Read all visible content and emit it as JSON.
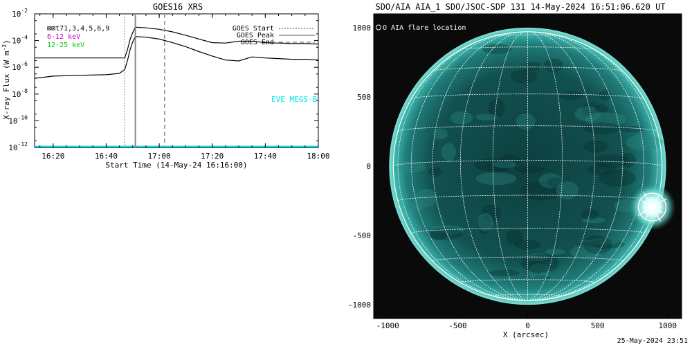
{
  "chart_data": [
    {
      "type": "line",
      "title": "GOES16 XRS",
      "xlabel": "Start Time (14-May-24 16:16:00)",
      "ylabel": "X-ray Flux (W m",
      "ylabel_sup": "-2",
      "ylabel_end": ")",
      "y_scale": "log",
      "ylim": [
        1e-12,
        0.01
      ],
      "xlim": [
        "16:13",
        "18:00"
      ],
      "x_ticks": [
        "16:20",
        "16:40",
        "17:00",
        "17:20",
        "17:40",
        "18:00"
      ],
      "y_ticks": [
        {
          "base": "10",
          "exp": "-2"
        },
        {
          "base": "10",
          "exp": "-4"
        },
        {
          "base": "10",
          "exp": "-6"
        },
        {
          "base": "10",
          "exp": "-8"
        },
        {
          "base": "10",
          "exp": "-10"
        },
        {
          "base": "10",
          "exp": "-12"
        }
      ],
      "legend_top_left": [
        {
          "text": "⊠⊠t71,3,4,5,6,9",
          "color": "#000000"
        },
        {
          "text": "6-12 keV",
          "color": "#cc00cc"
        },
        {
          "text": "12-25 keV",
          "color": "#00cc00"
        }
      ],
      "legend_top_right": [
        {
          "text": "GOES Start",
          "style": "dotted"
        },
        {
          "text": "GOES Peak",
          "style": "solid"
        },
        {
          "text": "GOES End",
          "style": "dashed"
        }
      ],
      "annotation": {
        "text": "EVE MEGS-B",
        "color": "#00e5ee"
      },
      "vlines": {
        "start": "16:47",
        "peak": "16:51",
        "end": "17:02"
      },
      "series": [
        {
          "color": "#000000",
          "x": [
            "16:13",
            "16:40",
            "16:47",
            "16:48",
            "16:49",
            "16:50",
            "16:51",
            "16:55",
            "17:00",
            "17:05",
            "17:10",
            "17:15",
            "17:20",
            "17:25",
            "17:30",
            "17:35",
            "17:40",
            "17:45",
            "17:50",
            "17:55",
            "18:00"
          ],
          "y": [
            5e-06,
            5e-06,
            5e-06,
            2e-05,
            0.00012,
            0.0004,
            0.001,
            0.0009,
            0.0007,
            0.00045,
            0.00025,
            0.00013,
            7e-05,
            6.5e-05,
            9e-05,
            9e-05,
            7e-05,
            6.5e-05,
            6e-05,
            6e-05,
            5.5e-05
          ]
        },
        {
          "color": "#000000",
          "x": [
            "16:13",
            "16:20",
            "16:30",
            "16:40",
            "16:45",
            "16:47",
            "16:48",
            "16:49",
            "16:50",
            "16:51",
            "16:55",
            "17:00",
            "17:05",
            "17:10",
            "17:15",
            "17:20",
            "17:25",
            "17:30",
            "17:35",
            "17:40",
            "17:45",
            "17:50",
            "17:55",
            "18:00"
          ],
          "y": [
            1.5e-07,
            2.2e-07,
            2.5e-07,
            2.8e-07,
            3.5e-07,
            7e-07,
            3e-06,
            2e-05,
            8e-05,
            0.0002,
            0.00018,
            0.00013,
            7e-05,
            3.5e-05,
            1.5e-05,
            7e-06,
            3.5e-06,
            3e-06,
            6e-06,
            5e-06,
            4.5e-06,
            4e-06,
            4e-06,
            3.5e-06
          ]
        },
        {
          "color": "#00e5ee",
          "x": [
            "16:13",
            "18:00"
          ],
          "y": [
            1.2e-12,
            1.2e-12
          ]
        }
      ]
    },
    {
      "type": "scatter",
      "title": "SDO/AIA AIA_1 SDO/JSOC-SDP 131 14-May-2024 16:51:06.620 UT",
      "xlabel": "X (arcsec)",
      "ylabel": "",
      "xlim": [
        -1100,
        1100
      ],
      "ylim": [
        -1100,
        1100
      ],
      "x_ticks": [
        "-1000",
        "-500",
        "0",
        "500",
        "1000"
      ],
      "y_ticks": [
        "1000",
        "500",
        "0",
        "-500",
        "-1000"
      ],
      "legend": "O AIA flare location",
      "disk_radius": 960,
      "flare_location": {
        "x": 890,
        "y": -295
      }
    }
  ],
  "footer": {
    "timestamp": "25-May-2024 23:51"
  }
}
